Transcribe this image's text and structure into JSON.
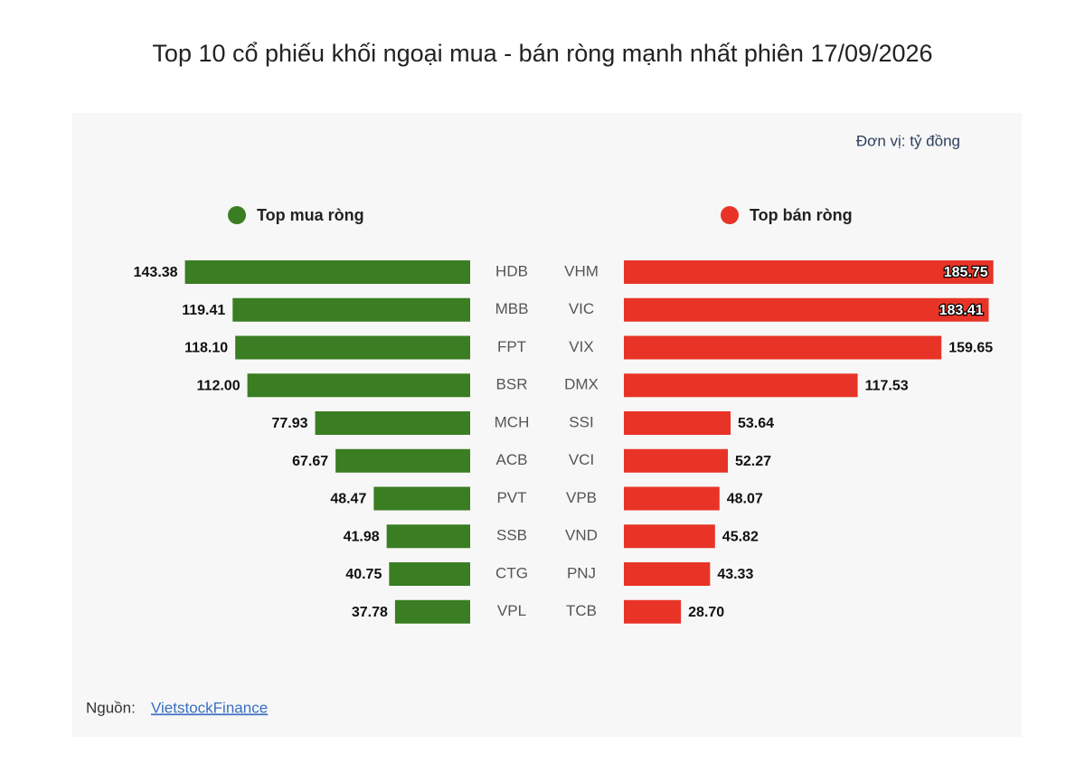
{
  "title": "Top 10 cổ phiếu khối ngoại mua - bán ròng mạnh nhất phiên 17/09/2026",
  "unit": "Đơn vị: tỷ đồng",
  "source_label": "Nguồn:",
  "source_name": "VietstockFinance",
  "chart_data": [
    {
      "type": "bar",
      "orientation": "horizontal",
      "direction": "left",
      "categories": [
        "HDB",
        "MBB",
        "FPT",
        "BSR",
        "MCH",
        "ACB",
        "PVT",
        "SSB",
        "CTG",
        "VPL"
      ],
      "series": [
        {
          "name": "Top mua ròng",
          "color": "#3a7d22",
          "values": [
            143.38,
            119.41,
            118.1,
            112,
            77.93,
            67.67,
            48.47,
            41.98,
            40.75,
            37.78
          ],
          "value_labels": [
            "143.38",
            "119.41",
            "118.10",
            "112.00",
            "77.93",
            "67.67",
            "48.47",
            "41.98",
            "40.75",
            "37.78"
          ]
        }
      ]
    },
    {
      "type": "bar",
      "orientation": "horizontal",
      "direction": "right",
      "categories": [
        "VHM",
        "VIC",
        "VIX",
        "DMX",
        "SSI",
        "VCI",
        "VPB",
        "VND",
        "PNJ",
        "TCB"
      ],
      "series": [
        {
          "name": "Top bán ròng",
          "color": "#e83427",
          "values": [
            185.75,
            183.41,
            159.65,
            117.53,
            53.64,
            52.27,
            48.07,
            45.82,
            43.33,
            28.7
          ],
          "value_labels": [
            "185.75",
            "183.41",
            "159.65",
            "117.53",
            "53.64",
            "52.27",
            "48.07",
            "45.82",
            "43.33",
            "28.70"
          ]
        }
      ]
    }
  ]
}
